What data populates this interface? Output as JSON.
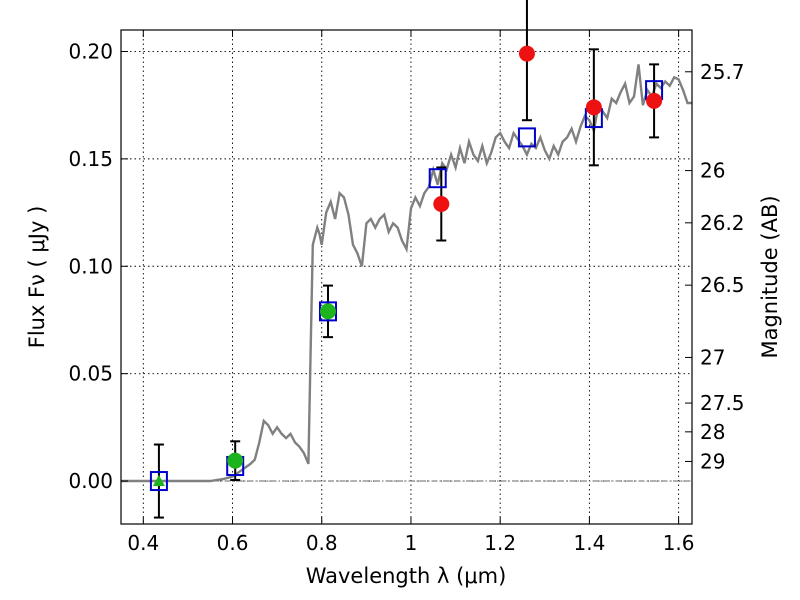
{
  "chart_data": {
    "type": "scatter",
    "title": "",
    "xlabel": "Wavelength  λ (μm)",
    "ylabel": "Flux  Fν  ( μJy )",
    "ylabel_right": "Magnitude (AB)",
    "xlim": [
      0.35,
      1.63
    ],
    "ylim": [
      -0.02,
      0.21
    ],
    "grid": true,
    "x_ticks": [
      0.4,
      0.6,
      0.8,
      1.0,
      1.2,
      1.4,
      1.6
    ],
    "x_tick_labels": [
      "0.4",
      "0.6",
      "0.8",
      "1",
      "1.2",
      "1.4",
      "1.6"
    ],
    "y_ticks": [
      0.0,
      0.05,
      0.1,
      0.15,
      0.2
    ],
    "y_tick_labels": [
      "0.00",
      "0.05",
      "0.10",
      "0.15",
      "0.20"
    ],
    "right_ticks": [
      {
        "label": "25.7",
        "mag": 25.7
      },
      {
        "label": "26",
        "mag": 26.0
      },
      {
        "label": "26.2",
        "mag": 26.2
      },
      {
        "label": "26.5",
        "mag": 26.5
      },
      {
        "label": "27",
        "mag": 27.0
      },
      {
        "label": "27.5",
        "mag": 27.5
      },
      {
        "label": "28",
        "mag": 28.0
      },
      {
        "label": "29",
        "mag": 29.0
      }
    ],
    "colors": {
      "model": "#808080",
      "model_photometry": "#0000cc",
      "green": "#1db31d",
      "red": "#ee1111",
      "errorbar": "#000000",
      "zero_line": "#666666"
    },
    "series": [
      {
        "name": "model spectrum",
        "kind": "line",
        "x": [
          0.35,
          0.55,
          0.58,
          0.6,
          0.62,
          0.64,
          0.65,
          0.66,
          0.67,
          0.68,
          0.69,
          0.7,
          0.71,
          0.72,
          0.73,
          0.74,
          0.75,
          0.76,
          0.77,
          0.775,
          0.78,
          0.79,
          0.795,
          0.8,
          0.81,
          0.82,
          0.83,
          0.84,
          0.85,
          0.86,
          0.87,
          0.88,
          0.89,
          0.9,
          0.91,
          0.92,
          0.93,
          0.94,
          0.95,
          0.96,
          0.97,
          0.98,
          0.99,
          1.0,
          1.01,
          1.02,
          1.03,
          1.04,
          1.05,
          1.06,
          1.07,
          1.08,
          1.09,
          1.1,
          1.11,
          1.12,
          1.13,
          1.14,
          1.15,
          1.16,
          1.17,
          1.18,
          1.19,
          1.2,
          1.21,
          1.22,
          1.23,
          1.24,
          1.25,
          1.26,
          1.27,
          1.28,
          1.29,
          1.3,
          1.31,
          1.32,
          1.33,
          1.34,
          1.35,
          1.36,
          1.37,
          1.38,
          1.39,
          1.4,
          1.41,
          1.42,
          1.43,
          1.44,
          1.45,
          1.46,
          1.47,
          1.48,
          1.49,
          1.5,
          1.51,
          1.52,
          1.53,
          1.54,
          1.55,
          1.56,
          1.57,
          1.58,
          1.59,
          1.6,
          1.61,
          1.62,
          1.63
        ],
        "y": [
          0.0,
          0.0,
          0.001,
          0.002,
          0.005,
          0.008,
          0.01,
          0.018,
          0.028,
          0.026,
          0.022,
          0.025,
          0.022,
          0.02,
          0.022,
          0.018,
          0.016,
          0.013,
          0.008,
          0.06,
          0.11,
          0.118,
          0.115,
          0.11,
          0.125,
          0.13,
          0.122,
          0.134,
          0.132,
          0.124,
          0.11,
          0.106,
          0.1,
          0.12,
          0.122,
          0.118,
          0.122,
          0.124,
          0.116,
          0.12,
          0.118,
          0.112,
          0.108,
          0.127,
          0.132,
          0.128,
          0.134,
          0.137,
          0.145,
          0.138,
          0.148,
          0.145,
          0.152,
          0.146,
          0.155,
          0.148,
          0.158,
          0.152,
          0.149,
          0.156,
          0.148,
          0.153,
          0.16,
          0.162,
          0.158,
          0.155,
          0.162,
          0.159,
          0.156,
          0.152,
          0.157,
          0.155,
          0.16,
          0.154,
          0.15,
          0.156,
          0.152,
          0.158,
          0.16,
          0.164,
          0.158,
          0.165,
          0.17,
          0.168,
          0.163,
          0.175,
          0.172,
          0.169,
          0.178,
          0.176,
          0.181,
          0.185,
          0.176,
          0.179,
          0.194,
          0.175,
          0.182,
          0.179,
          0.185,
          0.183,
          0.186,
          0.184,
          0.188,
          0.187,
          0.182,
          0.176,
          0.176
        ]
      },
      {
        "name": "model photometry",
        "kind": "open-square",
        "x": [
          0.435,
          0.606,
          0.814,
          1.06,
          1.26,
          1.41,
          1.545
        ],
        "y": [
          0.0,
          0.007,
          0.079,
          0.141,
          0.16,
          0.169,
          0.182
        ]
      },
      {
        "name": "observed (triangle)",
        "kind": "triangle",
        "x": [
          0.435
        ],
        "y": [
          0.0
        ],
        "err": [
          0.017
        ]
      },
      {
        "name": "observed (green)",
        "kind": "circle-green",
        "x": [
          0.606,
          0.814
        ],
        "y": [
          0.0095,
          0.079
        ],
        "err": [
          0.009,
          0.012
        ]
      },
      {
        "name": "observed (red)",
        "kind": "circle-red",
        "x": [
          1.068,
          1.26,
          1.41,
          1.545
        ],
        "y": [
          0.129,
          0.199,
          0.174,
          0.177
        ],
        "err": [
          0.017,
          0.031,
          0.027,
          0.017
        ]
      }
    ]
  }
}
